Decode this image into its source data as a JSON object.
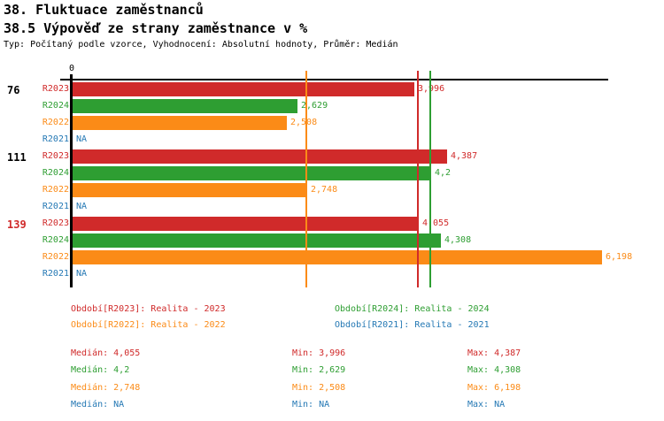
{
  "header": {
    "title": "38. Fluktuace zaměstnanců",
    "subtitle": "38.5 Výpověď ze strany zaměstnance v %",
    "meta": "Typ: Počítaný podle vzorce, Vyhodnocení: Absolutní hodnoty, Průměr: Medián"
  },
  "colors": {
    "r2023": "#d02a2a",
    "r2024": "#2e9e32",
    "r2022": "#fb8b17",
    "r2021": "#2478b4",
    "axis": "#000000"
  },
  "chart_data": {
    "type": "bar",
    "orientation": "horizontal",
    "title": "38.5 Výpověď ze strany zaměstnance v %",
    "axis": {
      "tick_label": "0",
      "min": 0,
      "max": 6.3,
      "grid": false
    },
    "series_order": [
      "R2023",
      "R2024",
      "R2022",
      "R2021"
    ],
    "groups": [
      {
        "label": "76",
        "label_color": "#000000",
        "bars": [
          {
            "series": "R2023",
            "value": 3.996,
            "display": "3,996"
          },
          {
            "series": "R2024",
            "value": 2.629,
            "display": "2,629"
          },
          {
            "series": "R2022",
            "value": 2.508,
            "display": "2,508"
          },
          {
            "series": "R2021",
            "value": null,
            "display": "NA"
          }
        ]
      },
      {
        "label": "111",
        "label_color": "#000000",
        "bars": [
          {
            "series": "R2023",
            "value": 4.387,
            "display": "4,387"
          },
          {
            "series": "R2024",
            "value": 4.2,
            "display": "4,2"
          },
          {
            "series": "R2022",
            "value": 2.748,
            "display": "2,748"
          },
          {
            "series": "R2021",
            "value": null,
            "display": "NA"
          }
        ]
      },
      {
        "label": "139",
        "label_color": "#d02a2a",
        "bars": [
          {
            "series": "R2023",
            "value": 4.055,
            "display": "4,055"
          },
          {
            "series": "R2024",
            "value": 4.308,
            "display": "4,308"
          },
          {
            "series": "R2022",
            "value": 6.198,
            "display": "6,198"
          },
          {
            "series": "R2021",
            "value": null,
            "display": "NA"
          }
        ]
      }
    ],
    "median_lines": [
      {
        "series": "R2023",
        "value": 4.055
      },
      {
        "series": "R2024",
        "value": 4.2
      },
      {
        "series": "R2022",
        "value": 2.748
      }
    ]
  },
  "legend": [
    {
      "label": "Období[R2023]: Realita - 2023",
      "color_key": "r2023",
      "col": 0,
      "row": 0
    },
    {
      "label": "Období[R2022]: Realita - 2022",
      "color_key": "r2022",
      "col": 0,
      "row": 1
    },
    {
      "label": "Období[R2024]: Realita - 2024",
      "color_key": "r2024",
      "col": 1,
      "row": 0
    },
    {
      "label": "Období[R2021]: Realita - 2021",
      "color_key": "r2021",
      "col": 1,
      "row": 1
    }
  ],
  "stats": [
    {
      "color_key": "r2023",
      "median": "Medián: 4,055",
      "min": "Min: 3,996",
      "max": "Max: 4,387"
    },
    {
      "color_key": "r2024",
      "median": "Medián: 4,2",
      "min": "Min: 2,629",
      "max": "Max: 4,308"
    },
    {
      "color_key": "r2022",
      "median": "Medián: 2,748",
      "min": "Min: 2,508",
      "max": "Max: 6,198"
    },
    {
      "color_key": "r2021",
      "median": "Medián: NA",
      "min": "Min: NA",
      "max": "Max: NA"
    }
  ]
}
